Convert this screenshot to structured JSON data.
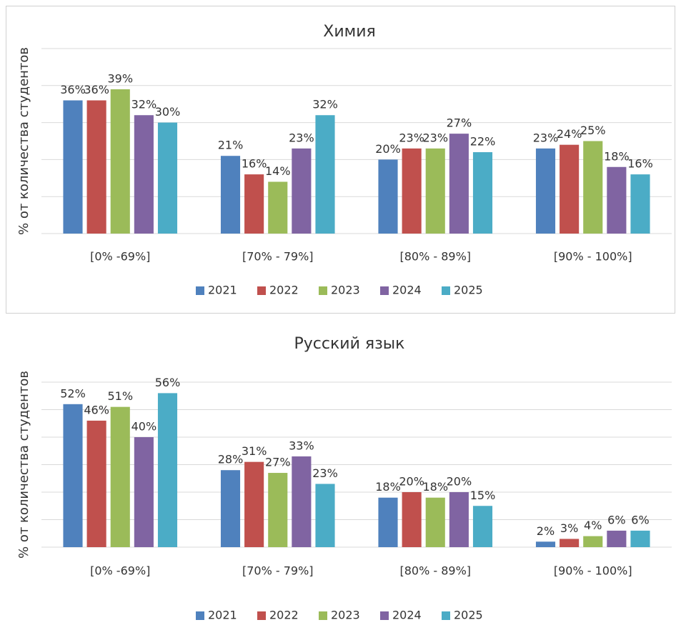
{
  "chart_data": [
    {
      "type": "bar",
      "title": "Химия",
      "y_label": "% от количества студентов",
      "categories": [
        "[0% -69%]",
        "[70% - 79%]",
        "[80% - 89%]",
        "[90% - 100%]"
      ],
      "ylim": [
        0,
        50
      ],
      "yticks": [
        0,
        10,
        20,
        30,
        40,
        50
      ],
      "grid": true,
      "legend": "bottom",
      "series": [
        {
          "name": "2021",
          "color": "#4f81bd",
          "values": [
            36,
            21,
            20,
            23
          ],
          "value_labels": [
            "36%",
            "21%",
            "20%",
            "23%"
          ]
        },
        {
          "name": "2022",
          "color": "#c0504d",
          "values": [
            36,
            16,
            23,
            24
          ],
          "value_labels": [
            "36%",
            "16%",
            "23%",
            "24%"
          ]
        },
        {
          "name": "2023",
          "color": "#9bbb59",
          "values": [
            39,
            14,
            23,
            25
          ],
          "value_labels": [
            "39%",
            "14%",
            "23%",
            "25%"
          ]
        },
        {
          "name": "2024",
          "color": "#8064a2",
          "values": [
            32,
            23,
            27,
            18
          ],
          "value_labels": [
            "32%",
            "23%",
            "27%",
            "18%"
          ]
        },
        {
          "name": "2025",
          "color": "#4bacc6",
          "values": [
            30,
            32,
            22,
            16
          ],
          "value_labels": [
            "30%",
            "32%",
            "22%",
            "16%"
          ]
        }
      ]
    },
    {
      "type": "bar",
      "title": "Русский язык",
      "y_label": "% от количества студентов",
      "categories": [
        "[0% -69%]",
        "[70% - 79%]",
        "[80% - 89%]",
        "[90% - 100%]"
      ],
      "ylim": [
        0,
        60
      ],
      "yticks": [
        0,
        10,
        20,
        30,
        40,
        50,
        60
      ],
      "grid": true,
      "legend": "bottom",
      "series": [
        {
          "name": "2021",
          "color": "#4f81bd",
          "values": [
            52,
            28,
            18,
            2
          ],
          "value_labels": [
            "52%",
            "28%",
            "18%",
            "2%"
          ]
        },
        {
          "name": "2022",
          "color": "#c0504d",
          "values": [
            46,
            31,
            20,
            3
          ],
          "value_labels": [
            "46%",
            "31%",
            "20%",
            "3%"
          ]
        },
        {
          "name": "2023",
          "color": "#9bbb59",
          "values": [
            51,
            27,
            18,
            4
          ],
          "value_labels": [
            "51%",
            "27%",
            "18%",
            "4%"
          ]
        },
        {
          "name": "2024",
          "color": "#8064a2",
          "values": [
            40,
            33,
            20,
            6
          ],
          "value_labels": [
            "40%",
            "33%",
            "20%",
            "6%"
          ]
        },
        {
          "name": "2025",
          "color": "#4bacc6",
          "values": [
            56,
            23,
            15,
            6
          ],
          "value_labels": [
            "56%",
            "23%",
            "15%",
            "6%"
          ]
        }
      ]
    }
  ]
}
